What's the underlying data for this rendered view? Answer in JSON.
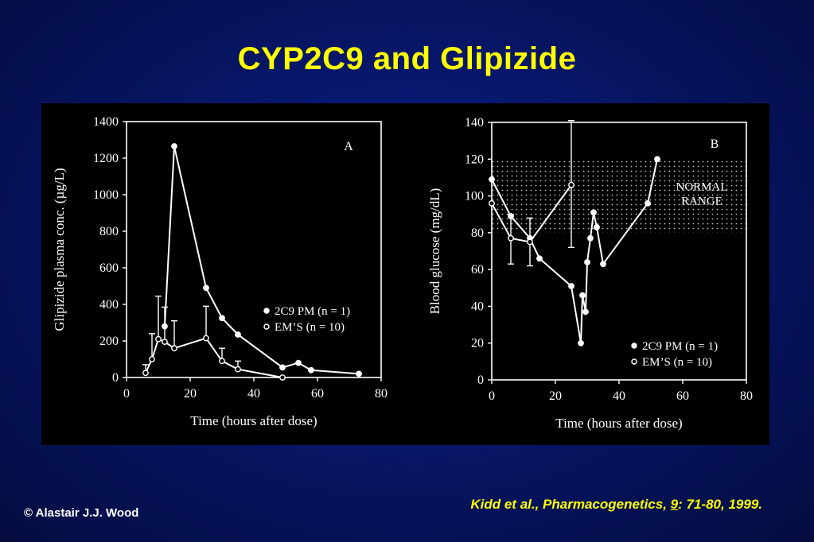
{
  "slide": {
    "title": "CYP2C9 and Glipizide",
    "copyright": "© Alastair J.J. Wood",
    "citation": {
      "prefix": "Kidd et al., Pharmacogenetics, ",
      "volume": "9",
      "suffix": ": 71-80, 1999."
    }
  },
  "colors": {
    "title": "#ffff00",
    "background": "#071668",
    "panel": "#000000",
    "ink": "#ffffff"
  },
  "chart_data": [
    {
      "type": "line",
      "panel_label": "A",
      "xlabel": "Time (hours after dose)",
      "ylabel": "Glipizide plasma conc. (µg/L)",
      "xlim": [
        0,
        80
      ],
      "ylim": [
        0,
        1400
      ],
      "xticks": [
        "0",
        "20",
        "40",
        "60",
        "80"
      ],
      "yticks": [
        "0",
        "200",
        "400",
        "600",
        "800",
        "1000",
        "1200",
        "1400"
      ],
      "legend_position": "right-middle",
      "series": [
        {
          "name": "2C9 PM",
          "n_label": "(n = 1)",
          "marker": "filled",
          "x": [
            12,
            15,
            25,
            30,
            35,
            49,
            54,
            58,
            73
          ],
          "y": [
            280,
            1265,
            490,
            325,
            235,
            55,
            80,
            40,
            20
          ]
        },
        {
          "name": "EM’S",
          "n_label": "(n = 10)",
          "marker": "open",
          "x": [
            6,
            8,
            10,
            12,
            15,
            25,
            30,
            35,
            49
          ],
          "y": [
            25,
            100,
            210,
            195,
            160,
            215,
            90,
            45,
            0
          ],
          "error_upper": [
            70,
            240,
            445,
            385,
            310,
            390,
            160,
            90,
            0
          ]
        }
      ]
    },
    {
      "type": "line",
      "panel_label": "B",
      "xlabel": "Time (hours after dose)",
      "ylabel": "Blood glucose (mg/dL)",
      "xlim": [
        0,
        80
      ],
      "ylim": [
        0,
        140
      ],
      "xticks": [
        "0",
        "20",
        "40",
        "60",
        "80"
      ],
      "yticks": [
        "0",
        "20",
        "40",
        "60",
        "80",
        "100",
        "120",
        "140"
      ],
      "band": {
        "label_line1": "NORMAL",
        "label_line2": "RANGE",
        "from": 80,
        "to": 120
      },
      "legend_position": "bottom-right",
      "series": [
        {
          "name": "2C9 PM",
          "n_label": "(n = 1)",
          "marker": "filled",
          "x": [
            0,
            6,
            12,
            15,
            25,
            28,
            28.5,
            29.5,
            30,
            31,
            32,
            33,
            35,
            49,
            52
          ],
          "y": [
            109,
            89,
            77,
            66,
            51,
            20,
            46,
            37,
            64,
            77,
            91,
            83,
            63,
            96,
            120
          ]
        },
        {
          "name": "EM’S",
          "n_label": "(n = 10)",
          "marker": "open",
          "x": [
            0,
            6,
            12,
            25
          ],
          "y": [
            96,
            77,
            75,
            106
          ],
          "error_lower": [
            96,
            63,
            62,
            72
          ],
          "error_upper": [
            96,
            90,
            88,
            141
          ]
        }
      ]
    }
  ]
}
